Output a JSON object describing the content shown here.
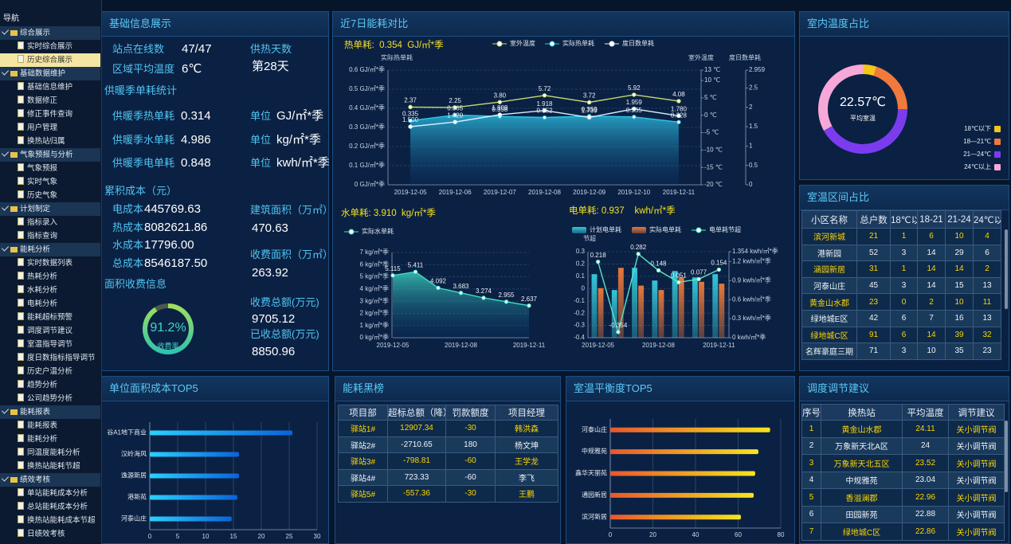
{
  "nav": {
    "title": "导航",
    "active": {
      "group": 0,
      "item": 1
    },
    "groups": [
      {
        "label": "综合展示",
        "items": [
          "实时综合展示",
          "历史综合展示"
        ]
      },
      {
        "label": "基础数据维护",
        "items": [
          "基础信息维护",
          "数据修正",
          "修正事件查询",
          "用户管理",
          "换热站归属"
        ]
      },
      {
        "label": "气象预报与分析",
        "items": [
          "气象预报",
          "实时气象",
          "历史气象"
        ]
      },
      {
        "label": "计划制定",
        "items": [
          "指标录入",
          "指标查询"
        ]
      },
      {
        "label": "能耗分析",
        "items": [
          "实时数据列表",
          "热耗分析",
          "水耗分析",
          "电耗分析",
          "能耗超标预警",
          "调度调节建议",
          "室温指导调节",
          "度日数指标指导调节",
          "历史户温分析",
          "趋势分析",
          "公司趋势分析"
        ]
      },
      {
        "label": "能耗报表",
        "items": [
          "能耗报表",
          "能耗分析",
          "同温度能耗分析",
          "换热站能耗节超"
        ]
      },
      {
        "label": "绩效考核",
        "items": [
          "单站能耗成本分析",
          "总站能耗成本分析",
          "换热站能耗成本节超",
          "日绩效考核"
        ]
      }
    ]
  },
  "panels": {
    "basic": "基础信息展示",
    "energy": "近7日能耗对比",
    "indoor": "室内温度占比",
    "zone": "室温区间占比",
    "cost": "单位面积成本TOP5",
    "black": "能耗黑榜",
    "balance": "室温平衡度TOP5",
    "advice": "调度调节建议"
  },
  "basic": {
    "online_label": "站点在线数",
    "online": "47/47",
    "days_label": "供热天数",
    "days": "第28天",
    "temp_label": "区域平均温度",
    "temp": "6℃",
    "season_title": "供暖季单耗统计",
    "season": [
      {
        "label": "供暖季热单耗",
        "value": "0.314",
        "unit_label": "单位",
        "unit": "GJ/㎡*季"
      },
      {
        "label": "供暖季水单耗",
        "value": "4.986",
        "unit_label": "单位",
        "unit": "kg/㎡*季"
      },
      {
        "label": "供暖季电单耗",
        "value": "0.848",
        "unit_label": "单位",
        "unit": "kwh/㎡*季"
      }
    ],
    "cost_title": "累积成本（元）",
    "costs": [
      {
        "label": "电成本",
        "value": "445769.63"
      },
      {
        "label": "热成本",
        "value": "8082621.86"
      },
      {
        "label": "水成本",
        "value": "17796.00"
      },
      {
        "label": "总成本",
        "value": "8546187.50"
      }
    ],
    "area": [
      {
        "label": "建筑面积（万㎡）",
        "value": "470.63"
      },
      {
        "label": "收费面积（万㎡）",
        "value": "263.92"
      },
      {
        "label": "收费总额(万元)",
        "value": "9705.12"
      },
      {
        "label": "已收总额(万元)",
        "value": "8850.96"
      }
    ],
    "fee_title": "面积收费信息"
  },
  "tables": {
    "zone": {
      "headers": [
        "小区名称",
        "总户数",
        "18℃以",
        "18-21",
        "21-24",
        "24℃以"
      ],
      "rows": [
        [
          "滨河新城",
          21,
          1,
          6,
          10,
          4
        ],
        [
          "港新园",
          52,
          3,
          14,
          29,
          6
        ],
        [
          "涵园新居",
          31,
          1,
          14,
          14,
          2
        ],
        [
          "河泰山庄",
          45,
          3,
          14,
          15,
          13
        ],
        [
          "黄金山水郡",
          23,
          0,
          2,
          10,
          11
        ],
        [
          "绿地城E区",
          42,
          6,
          7,
          16,
          13
        ],
        [
          "绿地城C区",
          91,
          6,
          14,
          39,
          32
        ],
        [
          "名辉豪庭三期",
          71,
          3,
          10,
          35,
          23
        ]
      ]
    },
    "black": {
      "headers": [
        "项目部",
        "超标总额（降）",
        "罚款额度",
        "项目经理"
      ],
      "rows": [
        [
          "驿站1#",
          12907.34,
          -30,
          "韩洪森"
        ],
        [
          "驿站2#",
          -2710.65,
          180,
          "杨文坤"
        ],
        [
          "驿站3#",
          -798.81,
          -60,
          "王学龙"
        ],
        [
          "驿站4#",
          723.33,
          -60,
          "李飞"
        ],
        [
          "驿站5#",
          -557.36,
          -30,
          "王鹏"
        ]
      ]
    },
    "advice": {
      "headers": [
        "序号",
        "换热站",
        "平均温度",
        "调节建议"
      ],
      "rows": [
        [
          1,
          "黄金山水郡",
          24.11,
          "关小调节阀"
        ],
        [
          2,
          "万象新天北A区",
          24,
          "关小调节阀"
        ],
        [
          3,
          "万象新天北五区",
          23.52,
          "关小调节阀"
        ],
        [
          4,
          "中规雅苑",
          23.04,
          "关小调节阀"
        ],
        [
          5,
          "香溢澜郡",
          22.96,
          "关小调节阀"
        ],
        [
          6,
          "田园新苑",
          22.88,
          "关小调节阀"
        ],
        [
          7,
          "绿地城C区",
          22.86,
          "关小调节阀"
        ]
      ]
    }
  },
  "chart_data": [
    {
      "type": "gauge",
      "values": [
        91.2
      ],
      "value_labels": [
        "91.2%"
      ],
      "label": "收费率",
      "ylim": [
        0,
        100
      ],
      "color": [
        "#a6e05a",
        "#27c4b0"
      ]
    },
    {
      "type": "line",
      "title": "热单耗:  0.354  GJ/㎡*季",
      "ylabel": "实际热单耗",
      "y2label": "室外温度",
      "y3label": "度日数单耗",
      "legend": true,
      "grid": true,
      "categories": [
        "2019-12-05",
        "2019-12-06",
        "2019-12-07",
        "2019-12-08",
        "2019-12-09",
        "2019-12-10",
        "2019-12-11"
      ],
      "ylim": [
        0,
        0.6
      ],
      "yticks": [
        {
          "value": 0,
          "label": "0 GJ/㎡*季"
        },
        {
          "value": 0.1,
          "label": "0.1 GJ/㎡*季"
        },
        {
          "value": 0.2,
          "label": "0.2 GJ/㎡*季"
        },
        {
          "value": 0.3,
          "label": "0.3 GJ/㎡*季"
        },
        {
          "value": 0.4,
          "label": "0.4 GJ/㎡*季"
        },
        {
          "value": 0.5,
          "label": "0.5 GJ/㎡*季"
        },
        {
          "value": 0.6,
          "label": "0.6 GJ/㎡*季"
        }
      ],
      "y2lim": [
        -20,
        13
      ],
      "y2ticks": [
        {
          "value": 13,
          "label": "13 ℃"
        },
        {
          "value": 10,
          "label": "10 ℃"
        },
        {
          "value": 5,
          "label": "5 ℃"
        },
        {
          "value": 0,
          "label": "0 ℃"
        },
        {
          "value": -5,
          "label": "-5 ℃"
        },
        {
          "value": -10,
          "label": "-10 ℃"
        },
        {
          "value": -15,
          "label": "-15 ℃"
        },
        {
          "value": -20,
          "label": "-20 ℃"
        }
      ],
      "y3lim": [
        0,
        2.959
      ],
      "y3ticks": [
        0,
        0.5,
        1,
        1.5,
        2,
        2.5,
        2.959
      ],
      "series": [
        {
          "name": "室外温度",
          "color": "#c8d96a",
          "axis": "y2",
          "labels": true,
          "values": [
            2.37,
            2.25,
            3.8,
            5.72,
            3.72,
            5.92,
            4.08
          ],
          "value_labels": [
            "2.37",
            "2.25",
            "3.80",
            "5.72",
            "3.72",
            "5.92",
            "4.08"
          ]
        },
        {
          "name": "实际热单耗",
          "color": "#2ec7ea",
          "axis": "y",
          "labels": true,
          "area": true,
          "values": [
            0.335,
            0.365,
            0.358,
            0.352,
            0.359,
            0.355,
            0.328
          ]
        },
        {
          "name": "度日数单耗",
          "color": "#d8f1ff",
          "axis": "y3",
          "labels": true,
          "values": [
            1.5,
            1.62,
            1.808,
            1.918,
            1.739,
            1.959,
            1.78
          ],
          "value_labels": [
            "1.500",
            "1.620",
            "1.808",
            "1.918",
            "1.739",
            "1.959",
            "1.780"
          ]
        }
      ]
    },
    {
      "type": "line",
      "title": "水单耗: 3.910  kg/㎡*季",
      "legend": true,
      "grid": true,
      "categories": [
        "2019-12-05",
        null,
        null,
        "2019-12-08",
        null,
        null,
        "2019-12-11"
      ],
      "ylim": [
        0,
        7
      ],
      "yticks": [
        {
          "value": 0,
          "label": "0 kg/㎡*季"
        },
        {
          "value": 1,
          "label": "1 kg/㎡*季"
        },
        {
          "value": 2,
          "label": "2 kg/㎡*季"
        },
        {
          "value": 3,
          "label": "3 kg/㎡*季"
        },
        {
          "value": 4,
          "label": "4 kg/㎡*季"
        },
        {
          "value": 5,
          "label": "5 kg/㎡*季"
        },
        {
          "value": 6,
          "label": "6 kg/㎡*季"
        },
        {
          "value": 7,
          "label": "7 kg/㎡*季"
        }
      ],
      "series": [
        {
          "name": "实际水单耗",
          "color": "#3fe0c8",
          "axis": "y",
          "labels": true,
          "area": true,
          "values": [
            5.115,
            5.411,
            4.092,
            3.683,
            3.274,
            2.955,
            2.637
          ]
        }
      ]
    },
    {
      "type": "bar",
      "title": "电单耗: 0.937    kwh/㎡*季",
      "ylabel": "节超",
      "legend": true,
      "grid": true,
      "categories": [
        "2019-12-05",
        null,
        null,
        "2019-12-08",
        null,
        null,
        "2019-12-11"
      ],
      "ylim": [
        -0.4,
        0.3
      ],
      "yticks": [
        -0.4,
        -0.3,
        -0.2,
        -0.1,
        0,
        0.1,
        0.2,
        0.3
      ],
      "y2lim": [
        0,
        1.354
      ],
      "y2ticks": [
        {
          "value": 0,
          "label": "0 kwh/㎡*季"
        },
        {
          "value": 0.3,
          "label": "0.3 kwh/㎡*季"
        },
        {
          "value": 0.6,
          "label": "0.6 kwh/㎡*季"
        },
        {
          "value": 0.9,
          "label": "0.9 kwh/㎡*季"
        },
        {
          "value": 1.2,
          "label": "1.2 kwh/㎡*季"
        },
        {
          "value": 1.354,
          "label": "1.354 kwh/㎡*季"
        }
      ],
      "series": [
        {
          "name": "计划电单耗",
          "color": "#34c6d9",
          "axis": "y2",
          "values": [
            1.0,
            0.75,
            1.1,
            0.9,
            1.05,
            0.95,
            1.0
          ]
        },
        {
          "name": "实际电单耗",
          "color": "#e8773a",
          "axis": "y2",
          "values": [
            0.78,
            1.1,
            0.82,
            0.75,
            0.95,
            0.88,
            0.85
          ]
        },
        {
          "name": "电单耗节超",
          "color": "#5be5c6",
          "type": "line",
          "axis": "y",
          "labels": true,
          "values": [
            0.218,
            -0.354,
            0.282,
            0.148,
            0.051,
            0.077,
            0.154
          ]
        }
      ]
    },
    {
      "type": "pie",
      "center_value": "22.57℃",
      "center_label": "平均室温",
      "categories": [
        "18℃以下",
        "18—21℃",
        "21—24℃",
        "24℃以上"
      ],
      "values": [
        5,
        20,
        42,
        33
      ],
      "colors": [
        "#f5c518",
        "#f07a3c",
        "#7b3cf0",
        "#f7a8d8"
      ]
    },
    {
      "type": "hbar",
      "categories": [
        "谷A1地下商业",
        "汉岭海风",
        "逸源新居",
        "港新苑",
        "河泰山庄"
      ],
      "values": [
        25.6,
        16,
        16,
        15.7,
        14.7
      ],
      "xlim": [
        0,
        30
      ],
      "xticks": [
        0,
        5,
        10,
        15,
        20,
        25,
        30
      ],
      "grid": true,
      "color": [
        "#2ad0ff",
        "#0b62d8"
      ]
    },
    {
      "type": "hbar",
      "categories": [
        "河泰山庄",
        "中规雅苑",
        "鑫华天丽苑",
        "通园新居",
        "滨河新居"
      ],
      "values": [
        75,
        69.5,
        68,
        67.3,
        61.3
      ],
      "xlim": [
        0,
        80
      ],
      "xticks": [
        0,
        20,
        40,
        60,
        80
      ],
      "grid": true,
      "color": [
        "#e8572e",
        "#f5e51e"
      ]
    }
  ]
}
